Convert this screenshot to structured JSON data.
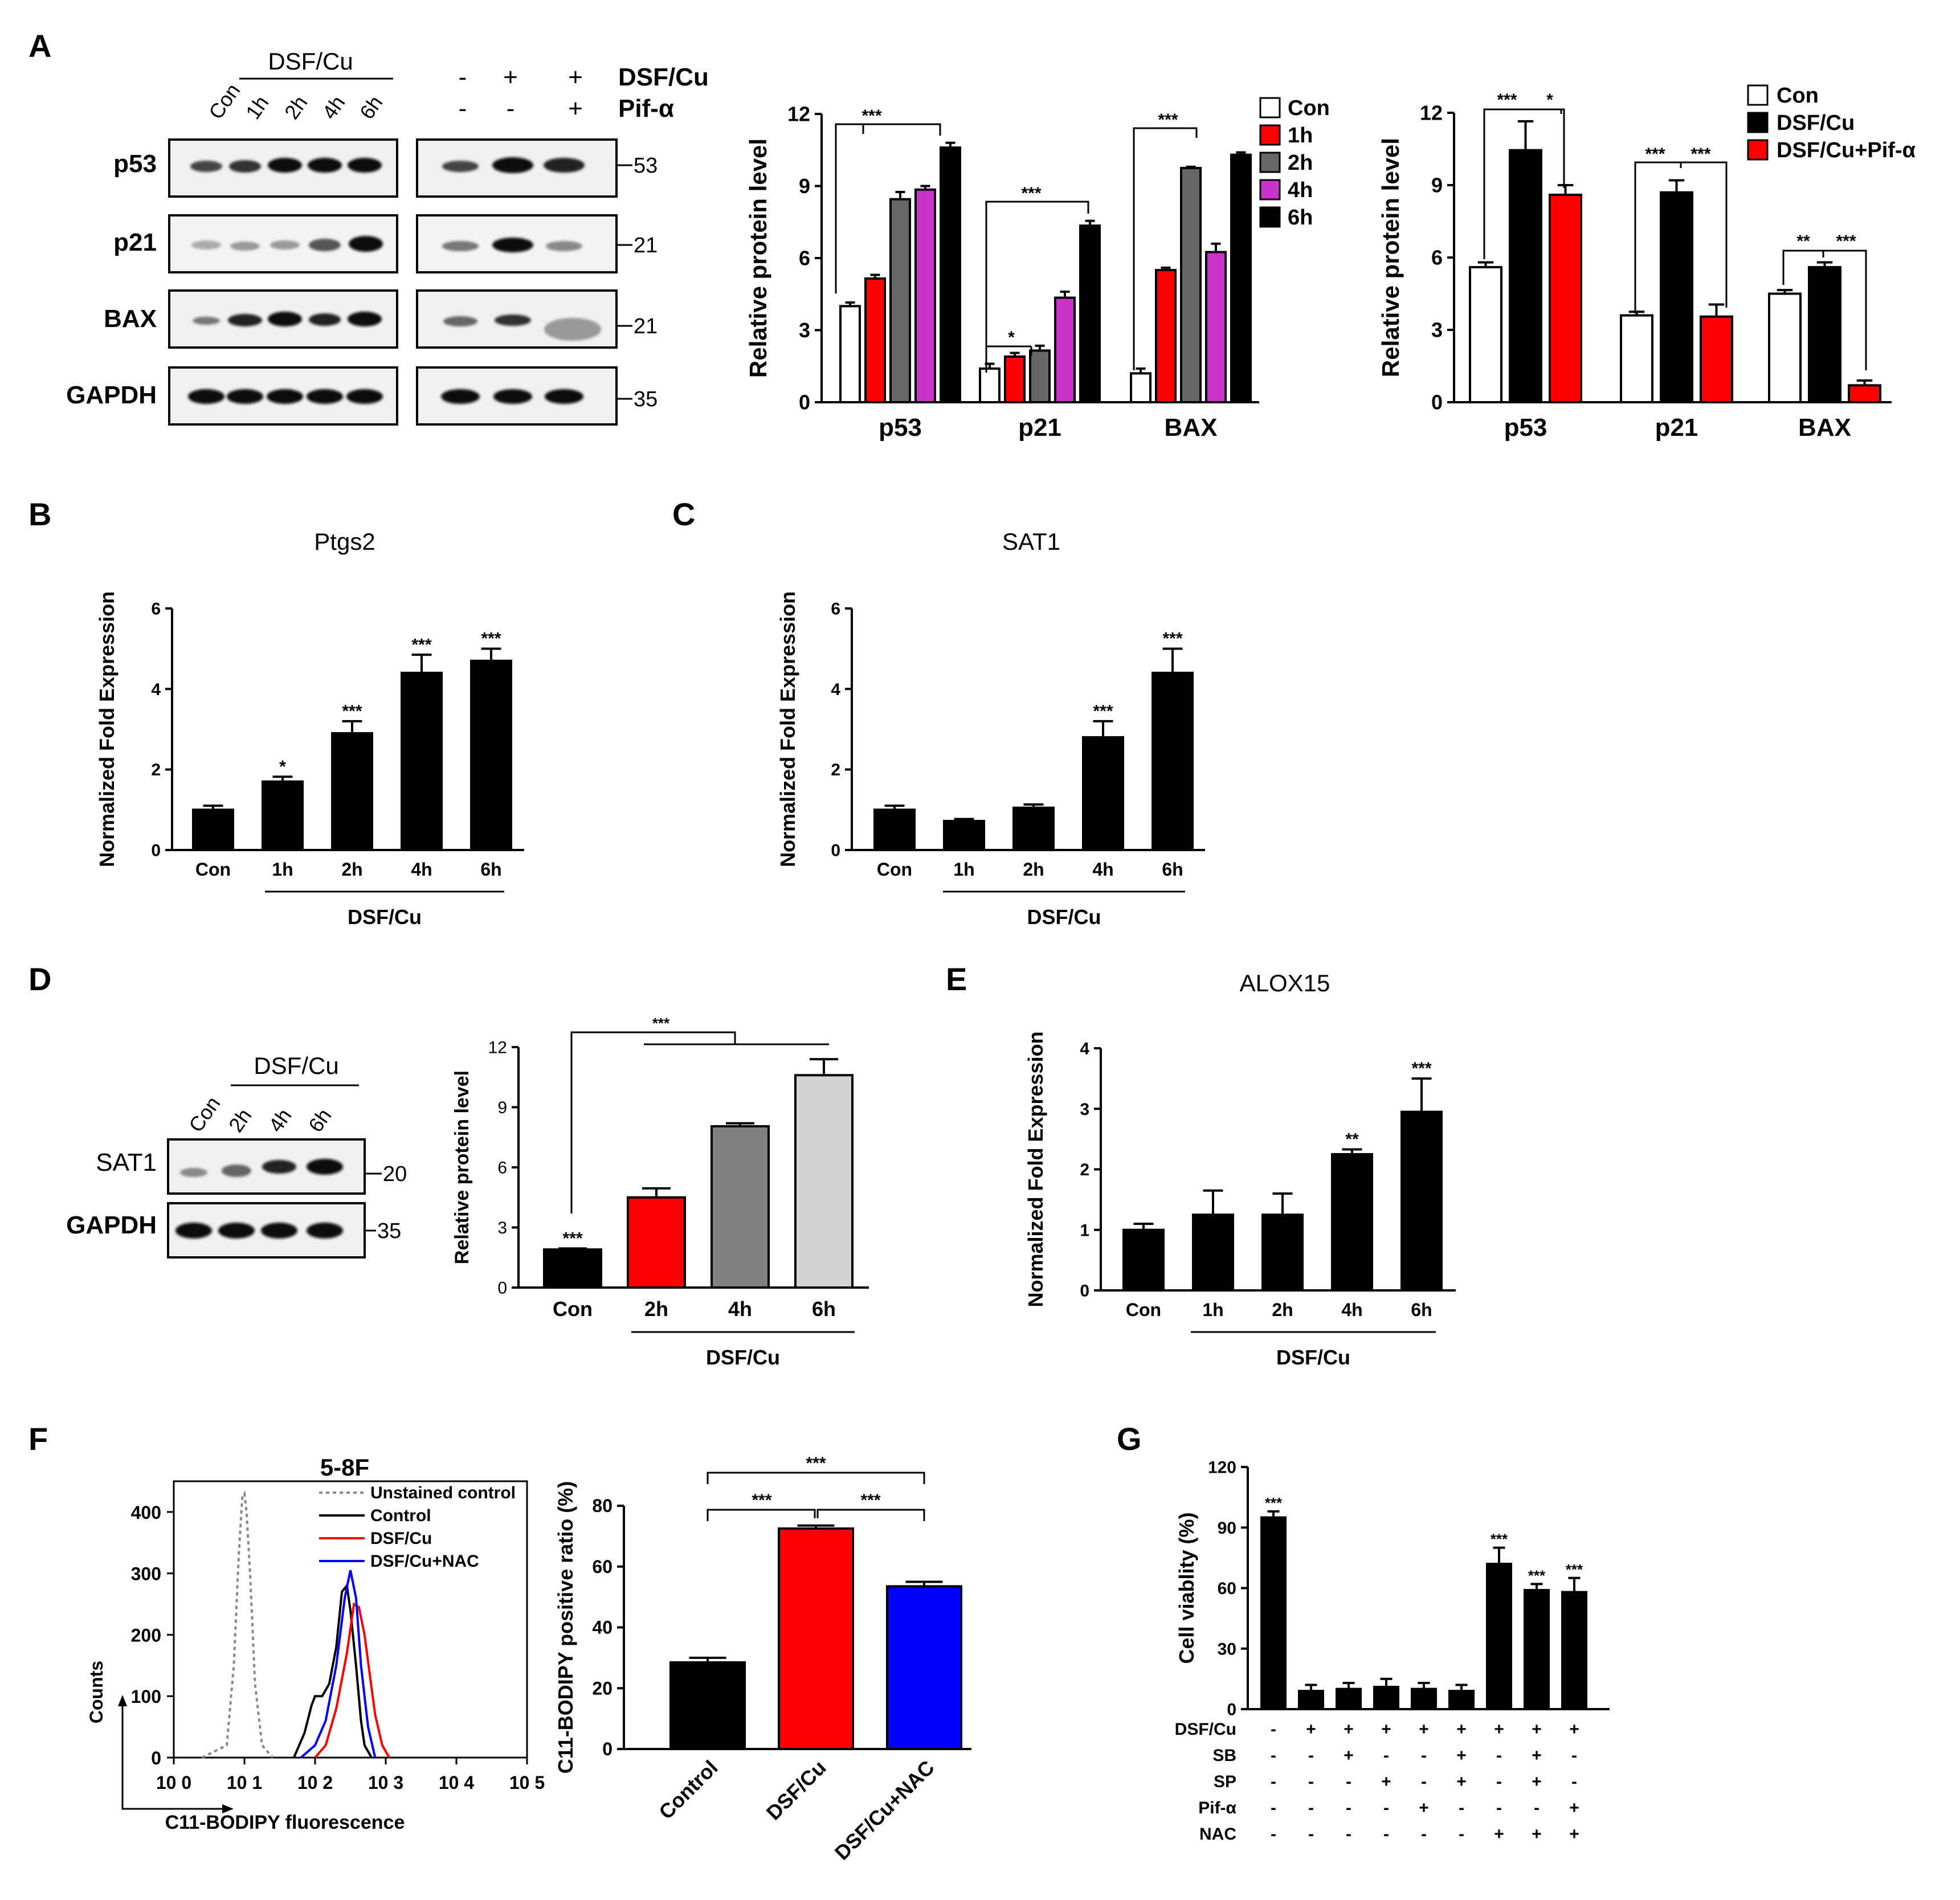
{
  "panel_labels": [
    "A",
    "B",
    "C",
    "D",
    "E",
    "F",
    "G"
  ],
  "common": {
    "con": "Con",
    "h1": "1h",
    "h2": "2h",
    "h4": "4h",
    "h6": "6h",
    "dsfcu": "DSF/Cu",
    "pif": "Pif-α",
    "plus": "+",
    "minus": "-",
    "p53": "p53",
    "p21": "p21",
    "bax": "BAX",
    "gapdh": "GAPDH",
    "sat1": "SAT1",
    "mw53": "53",
    "mw21": "21",
    "mw35": "35",
    "mw20": "20",
    "ylabel_rpl": "Relative protein level",
    "ylabel_nfe": "Normalized Fold Expression"
  },
  "colors": {
    "red": "#ff0000",
    "gray": "#666666",
    "purple": "#cc33cc",
    "black": "#000000",
    "white": "#ffffff",
    "lightgray": "#d3d3d3",
    "blue": "#0000ff"
  },
  "chart_data": [
    {
      "id": "A1",
      "type": "bar",
      "panel": "A",
      "ylabel": "Relative protein level",
      "ylim": [
        0,
        12
      ],
      "yticks": [
        0,
        3,
        6,
        9,
        12
      ],
      "groups": [
        "p53",
        "p21",
        "BAX"
      ],
      "series": [
        {
          "name": "Con",
          "color": "#ffffff",
          "values": [
            4.0,
            1.4,
            1.2
          ],
          "errors": [
            0.15,
            0.2,
            0.2
          ]
        },
        {
          "name": "1h",
          "color": "#ff0000",
          "values": [
            5.15,
            1.9,
            5.5
          ],
          "errors": [
            0.15,
            0.15,
            0.1
          ]
        },
        {
          "name": "2h",
          "color": "#666666",
          "values": [
            8.45,
            2.15,
            9.75
          ],
          "errors": [
            0.3,
            0.2,
            0.05
          ]
        },
        {
          "name": "4h",
          "color": "#cc33cc",
          "values": [
            8.85,
            4.35,
            6.25
          ],
          "errors": [
            0.15,
            0.25,
            0.35
          ]
        },
        {
          "name": "6h",
          "color": "#000000",
          "values": [
            10.6,
            7.35,
            10.3
          ],
          "errors": [
            0.2,
            0.2,
            0.1
          ]
        }
      ],
      "annotations": [
        "***",
        "***",
        "*",
        "***"
      ]
    },
    {
      "id": "A2",
      "type": "bar",
      "panel": "A",
      "ylabel": "Relative protein level",
      "ylim": [
        0,
        12
      ],
      "yticks": [
        0,
        3,
        6,
        9,
        12
      ],
      "groups": [
        "p53",
        "p21",
        "BAX"
      ],
      "series": [
        {
          "name": "Con",
          "color": "#ffffff",
          "values": [
            5.6,
            3.6,
            4.5
          ],
          "errors": [
            0.2,
            0.15,
            0.15
          ]
        },
        {
          "name": "DSF/Cu",
          "color": "#000000",
          "values": [
            10.45,
            8.7,
            5.6
          ],
          "errors": [
            1.2,
            0.5,
            0.2
          ]
        },
        {
          "name": "DSF/Cu+Pif-α",
          "color": "#ff0000",
          "values": [
            8.6,
            3.55,
            0.7
          ],
          "errors": [
            0.4,
            0.5,
            0.2
          ]
        }
      ],
      "annotations": [
        "***",
        "*",
        "***",
        "***",
        "**",
        "***"
      ]
    },
    {
      "id": "B",
      "type": "bar",
      "panel": "B",
      "title": "Ptgs2",
      "ylabel": "Normalized Fold Expression",
      "ylim": [
        0,
        6
      ],
      "yticks": [
        0,
        2,
        4,
        6
      ],
      "categories": [
        "Con",
        "1h",
        "2h",
        "4h",
        "6h"
      ],
      "values": [
        1.0,
        1.7,
        2.9,
        4.4,
        4.7
      ],
      "errors": [
        0.1,
        0.12,
        0.3,
        0.45,
        0.3
      ],
      "annotations": [
        "",
        "*",
        "***",
        "***",
        "***"
      ],
      "xgroup": "DSF/Cu"
    },
    {
      "id": "C",
      "type": "bar",
      "panel": "C",
      "title": "SAT1",
      "ylabel": "Normalized Fold Expression",
      "ylim": [
        0,
        6
      ],
      "yticks": [
        0,
        2,
        4,
        6
      ],
      "categories": [
        "Con",
        "1h",
        "2h",
        "4h",
        "6h"
      ],
      "values": [
        1.0,
        0.72,
        1.05,
        2.8,
        4.4
      ],
      "errors": [
        0.1,
        0.05,
        0.08,
        0.4,
        0.6
      ],
      "annotations": [
        "",
        "",
        "",
        "***",
        "***"
      ],
      "xgroup": "DSF/Cu"
    },
    {
      "id": "D",
      "type": "bar",
      "panel": "D",
      "ylabel": "Relative protein level",
      "ylim": [
        0,
        12
      ],
      "yticks": [
        0,
        3,
        6,
        9,
        12
      ],
      "categories": [
        "Con",
        "2h",
        "4h",
        "6h"
      ],
      "colors": [
        "#000000",
        "#ff0000",
        "#808080",
        "#d3d3d3"
      ],
      "values": [
        1.9,
        4.5,
        8.05,
        10.6
      ],
      "errors": [
        0.05,
        0.45,
        0.15,
        0.8
      ],
      "annotations": [
        "***"
      ],
      "xgroup": "DSF/Cu"
    },
    {
      "id": "E",
      "type": "bar",
      "panel": "E",
      "title": "ALOX15",
      "ylabel": "Normalized Fold Expression",
      "ylim": [
        0,
        4
      ],
      "yticks": [
        0,
        1,
        2,
        3,
        4
      ],
      "categories": [
        "Con",
        "1h",
        "2h",
        "4h",
        "6h"
      ],
      "values": [
        1.0,
        1.25,
        1.25,
        2.25,
        2.95
      ],
      "errors": [
        0.1,
        0.4,
        0.35,
        0.08,
        0.55
      ],
      "annotations": [
        "",
        "",
        "",
        "**",
        "***"
      ],
      "xgroup": "DSF/Cu"
    },
    {
      "id": "F1",
      "type": "line",
      "panel": "F",
      "title": "5-8F",
      "xlabel": "C11-BODIPY fluorescence",
      "ylabel": "Counts",
      "ylim": [
        0,
        450
      ],
      "yticks": [
        0,
        100,
        200,
        300,
        400
      ],
      "xscale": "log",
      "xlim": [
        0,
        5
      ],
      "xticks": [
        "10 0",
        "10 1",
        "10 2",
        "10 3",
        "10 4",
        "10 5"
      ],
      "series": [
        {
          "name": "Unstained control",
          "color": "#888888",
          "dashed": true,
          "x": [
            0.4,
            0.75,
            0.85,
            0.92,
            0.97,
            1.0,
            1.03,
            1.08,
            1.15,
            1.25,
            1.4
          ],
          "y": [
            0,
            20,
            150,
            330,
            425,
            430,
            400,
            300,
            120,
            20,
            0
          ]
        },
        {
          "name": "Control",
          "color": "#000000",
          "dashed": false,
          "x": [
            1.7,
            1.85,
            1.95,
            2.0,
            2.1,
            2.2,
            2.3,
            2.38,
            2.45,
            2.5,
            2.58,
            2.65,
            2.7,
            2.8
          ],
          "y": [
            0,
            40,
            85,
            100,
            100,
            120,
            180,
            270,
            280,
            240,
            150,
            60,
            20,
            0
          ]
        },
        {
          "name": "DSF/Cu",
          "color": "#ff0000",
          "dashed": false,
          "x": [
            2.0,
            2.15,
            2.3,
            2.45,
            2.55,
            2.62,
            2.7,
            2.78,
            2.85,
            2.95,
            3.05
          ],
          "y": [
            0,
            20,
            80,
            170,
            250,
            245,
            200,
            130,
            70,
            20,
            0
          ]
        },
        {
          "name": "DSF/Cu+NAC",
          "color": "#0000ff",
          "dashed": false,
          "x": [
            1.8,
            2.0,
            2.15,
            2.3,
            2.42,
            2.5,
            2.58,
            2.65,
            2.75,
            2.85
          ],
          "y": [
            0,
            20,
            60,
            150,
            260,
            305,
            260,
            150,
            50,
            0
          ]
        }
      ]
    },
    {
      "id": "F2",
      "type": "bar",
      "panel": "F",
      "ylabel": "C11-BODIPY positive ratio (%)",
      "ylim": [
        0,
        80
      ],
      "yticks": [
        0,
        20,
        40,
        60,
        80
      ],
      "categories": [
        "Control",
        "DSF/Cu",
        "DSF/Cu+NAC"
      ],
      "colors": [
        "#000000",
        "#ff0000",
        "#0000ff"
      ],
      "values": [
        28.5,
        72.5,
        53.5
      ],
      "errors": [
        1.5,
        1.0,
        1.5
      ],
      "annotations": [
        "***",
        "***",
        "***"
      ]
    },
    {
      "id": "G",
      "type": "bar",
      "panel": "G",
      "ylabel": "Cell viablity (%)",
      "ylim": [
        0,
        120
      ],
      "yticks": [
        0,
        30,
        60,
        90,
        120
      ],
      "values": [
        95,
        9,
        10,
        11,
        10,
        9,
        72,
        59,
        58
      ],
      "errors": [
        3,
        3,
        3,
        4,
        3,
        3,
        8,
        3,
        7
      ],
      "annotations": [
        "***",
        "",
        "",
        "",
        "",
        "",
        "***",
        "***",
        "***"
      ],
      "treatments": [
        {
          "name": "DSF/Cu",
          "signs": [
            "-",
            "+",
            "+",
            "+",
            "+",
            "+",
            "+",
            "+",
            "+"
          ]
        },
        {
          "name": "SB",
          "signs": [
            "-",
            "-",
            "+",
            "-",
            "-",
            "+",
            "-",
            "+",
            "-"
          ]
        },
        {
          "name": "SP",
          "signs": [
            "-",
            "-",
            "-",
            "+",
            "-",
            "+",
            "-",
            "+",
            "-"
          ]
        },
        {
          "name": "Pif-α",
          "signs": [
            "-",
            "-",
            "-",
            "-",
            "+",
            "-",
            "-",
            "-",
            "+"
          ]
        },
        {
          "name": "NAC",
          "signs": [
            "-",
            "-",
            "-",
            "-",
            "-",
            "-",
            "+",
            "+",
            "+"
          ]
        }
      ]
    }
  ]
}
